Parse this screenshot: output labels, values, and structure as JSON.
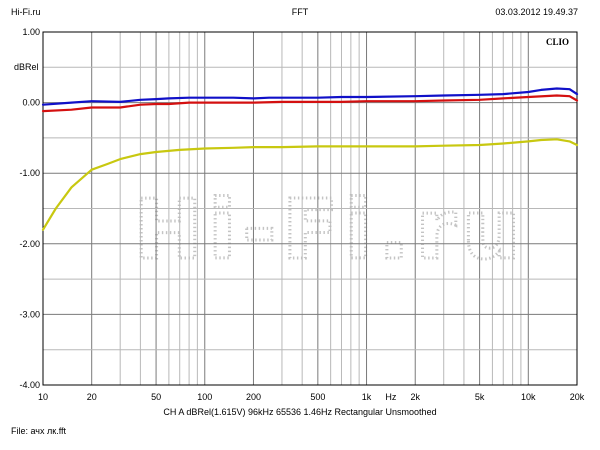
{
  "header": {
    "left": "Hi-Fi.ru",
    "center": "FFT",
    "right": "03.03.2012 19.49.37"
  },
  "brand": "CLIO",
  "watermark": "Hi-Fi.ru",
  "footer": {
    "settings": "CH A   dBRel(1.615V)   96kHz   65536   1.46Hz   Rectangular   Unsmoothed",
    "file": "File: ачх лк.fft"
  },
  "chart_data": {
    "type": "line",
    "xscale": "log",
    "xlim": [
      10,
      20000
    ],
    "ylim": [
      -4.0,
      1.0
    ],
    "ylabel": "dBRel",
    "xlabel": "Hz",
    "grid": true,
    "xticks": [
      {
        "value": 10,
        "label": "10"
      },
      {
        "value": 20,
        "label": "20"
      },
      {
        "value": 50,
        "label": "50"
      },
      {
        "value": 100,
        "label": "100"
      },
      {
        "value": 200,
        "label": "200"
      },
      {
        "value": 500,
        "label": "500"
      },
      {
        "value": 1000,
        "label": "1k"
      },
      {
        "value": 2000,
        "label": "2k"
      },
      {
        "value": 5000,
        "label": "5k"
      },
      {
        "value": 10000,
        "label": "10k"
      },
      {
        "value": 20000,
        "label": "20k"
      }
    ],
    "yticks": [
      {
        "value": 1.0,
        "label": "1.00"
      },
      {
        "value": 0.0,
        "label": "0.00"
      },
      {
        "value": -1.0,
        "label": "-1.00"
      },
      {
        "value": -2.0,
        "label": "-2.00"
      },
      {
        "value": -3.0,
        "label": "-3.00"
      },
      {
        "value": -4.0,
        "label": "-4.00"
      }
    ],
    "series": [
      {
        "color": "#1010c8",
        "x": [
          10,
          15,
          20,
          30,
          40,
          50,
          60,
          80,
          100,
          150,
          200,
          250,
          300,
          400,
          500,
          700,
          1000,
          2000,
          3000,
          5000,
          7000,
          10000,
          12000,
          15000,
          18000,
          20000
        ],
        "y": [
          -0.03,
          0.0,
          0.02,
          0.01,
          0.04,
          0.05,
          0.06,
          0.07,
          0.07,
          0.07,
          0.06,
          0.07,
          0.07,
          0.07,
          0.07,
          0.08,
          0.08,
          0.09,
          0.1,
          0.11,
          0.12,
          0.15,
          0.18,
          0.2,
          0.19,
          0.12
        ]
      },
      {
        "color": "#d41010",
        "x": [
          10,
          15,
          20,
          30,
          40,
          50,
          60,
          80,
          100,
          150,
          200,
          300,
          500,
          700,
          1000,
          2000,
          3000,
          5000,
          7000,
          10000,
          15000,
          18000,
          20000
        ],
        "y": [
          -0.12,
          -0.1,
          -0.07,
          -0.07,
          -0.03,
          -0.02,
          -0.02,
          0.0,
          0.0,
          0.0,
          0.0,
          0.01,
          0.01,
          0.01,
          0.02,
          0.02,
          0.03,
          0.04,
          0.06,
          0.08,
          0.1,
          0.09,
          0.03
        ]
      },
      {
        "color": "#c8c810",
        "x": [
          10,
          12,
          15,
          20,
          25,
          30,
          40,
          50,
          70,
          100,
          150,
          200,
          300,
          500,
          700,
          1000,
          2000,
          3000,
          5000,
          7000,
          10000,
          12000,
          15000,
          18000,
          20000
        ],
        "y": [
          -1.8,
          -1.5,
          -1.2,
          -0.95,
          -0.87,
          -0.8,
          -0.73,
          -0.7,
          -0.67,
          -0.65,
          -0.64,
          -0.63,
          -0.63,
          -0.62,
          -0.62,
          -0.62,
          -0.62,
          -0.61,
          -0.6,
          -0.58,
          -0.55,
          -0.53,
          -0.52,
          -0.55,
          -0.6
        ]
      }
    ]
  }
}
